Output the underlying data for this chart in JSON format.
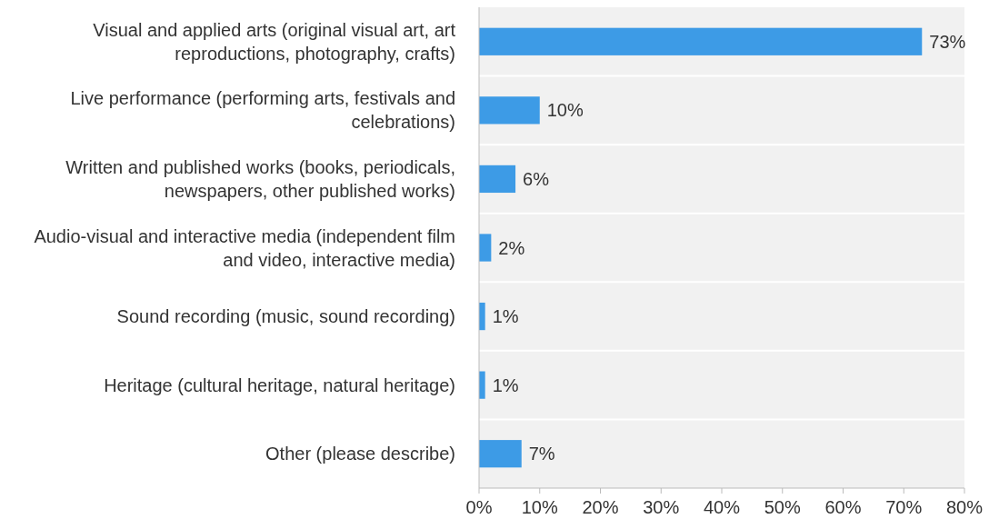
{
  "chart_data": {
    "type": "bar",
    "orientation": "horizontal",
    "categories": [
      "Visual and applied arts (original visual art, art reproductions, photography, crafts)",
      "Live performance (performing arts, festivals and celebrations)",
      "Written and published works (books, periodicals, newspapers, other published works)",
      "Audio-visual and interactive media (independent film and video, interactive media)",
      "Sound recording (music, sound recording)",
      "Heritage (cultural heritage, natural heritage)",
      "Other (please describe)"
    ],
    "values": [
      73,
      10,
      6,
      2,
      1,
      1,
      7
    ],
    "value_labels": [
      "73%",
      "10%",
      "6%",
      "2%",
      "1%",
      "1%",
      "7%"
    ],
    "color": "#3d9be6",
    "xlim": [
      0,
      80
    ],
    "xticks": [
      {
        "value": 0,
        "label": "0%"
      },
      {
        "value": 10,
        "label": "10%"
      },
      {
        "value": 20,
        "label": "20%"
      },
      {
        "value": 30,
        "label": "30%"
      },
      {
        "value": 40,
        "label": "40%"
      },
      {
        "value": 50,
        "label": "50%"
      },
      {
        "value": 60,
        "label": "60%"
      },
      {
        "value": 70,
        "label": "70%"
      },
      {
        "value": 80,
        "label": "80%"
      }
    ],
    "grid": "y"
  }
}
